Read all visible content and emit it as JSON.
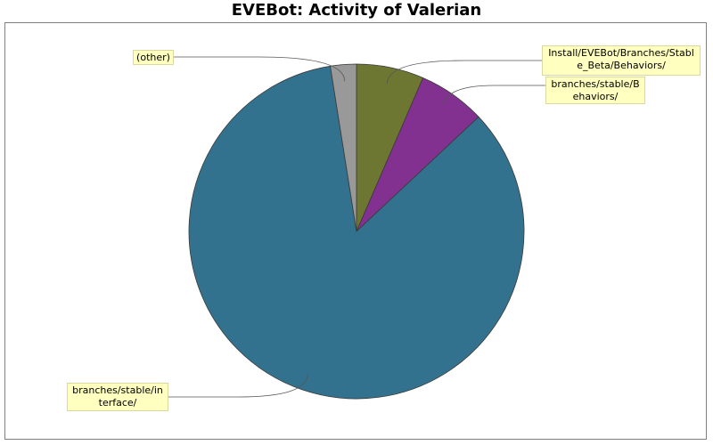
{
  "chart_data": {
    "type": "pie",
    "title": "EVEBot: Activity of Valerian",
    "slices": [
      {
        "label": "Install/EVEBot/Branches/Stable_Beta/Behaviors/",
        "value": 6.5,
        "color": "#6e7732"
      },
      {
        "label": "branches/stable/Behaviors/",
        "value": 6.5,
        "color": "#833191"
      },
      {
        "label": "branches/stable/interface/",
        "value": 84.5,
        "color": "#33728f"
      },
      {
        "label": "(other)",
        "value": 2.5,
        "color": "#999999"
      }
    ]
  }
}
